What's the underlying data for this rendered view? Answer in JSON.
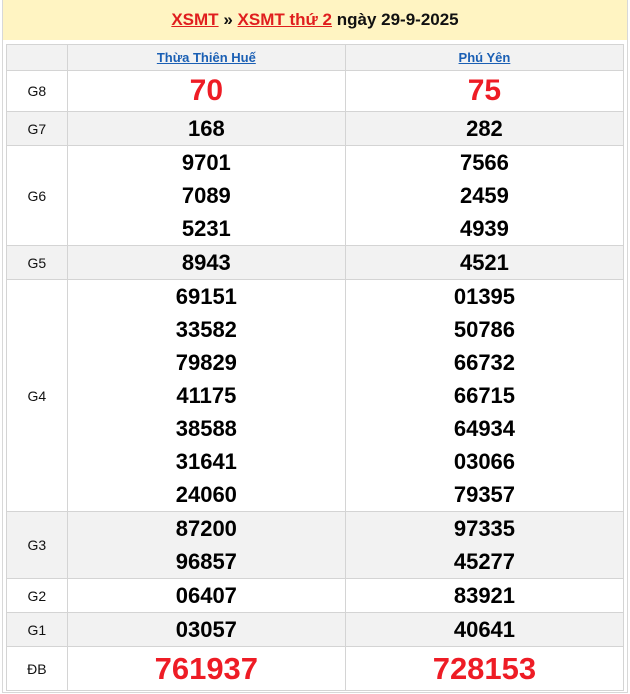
{
  "header": {
    "link1": "XSMT",
    "sep": "»",
    "link2": "XSMT thứ 2",
    "date_text": "ngày 29-9-2025"
  },
  "provinces": [
    "Thừa Thiên Huế",
    "Phú Yên"
  ],
  "prizes": [
    {
      "label": "G8",
      "a": [
        "70"
      ],
      "b": [
        "75"
      ]
    },
    {
      "label": "G7",
      "a": [
        "168"
      ],
      "b": [
        "282"
      ]
    },
    {
      "label": "G6",
      "a": [
        "9701",
        "7089",
        "5231"
      ],
      "b": [
        "7566",
        "2459",
        "4939"
      ]
    },
    {
      "label": "G5",
      "a": [
        "8943"
      ],
      "b": [
        "4521"
      ]
    },
    {
      "label": "G4",
      "a": [
        "69151",
        "33582",
        "79829",
        "41175",
        "38588",
        "31641",
        "24060"
      ],
      "b": [
        "01395",
        "50786",
        "66732",
        "66715",
        "64934",
        "03066",
        "79357"
      ]
    },
    {
      "label": "G3",
      "a": [
        "87200",
        "96857"
      ],
      "b": [
        "97335",
        "45277"
      ]
    },
    {
      "label": "G2",
      "a": [
        "06407"
      ],
      "b": [
        "83921"
      ]
    },
    {
      "label": "G1",
      "a": [
        "03057"
      ],
      "b": [
        "40641"
      ]
    },
    {
      "label": "ĐB",
      "a": [
        "761937"
      ],
      "b": [
        "728153"
      ]
    }
  ],
  "colors": {
    "highlight": "#ee1c25",
    "header_bg": "#fff4c2",
    "link": "#1a5fb4"
  }
}
